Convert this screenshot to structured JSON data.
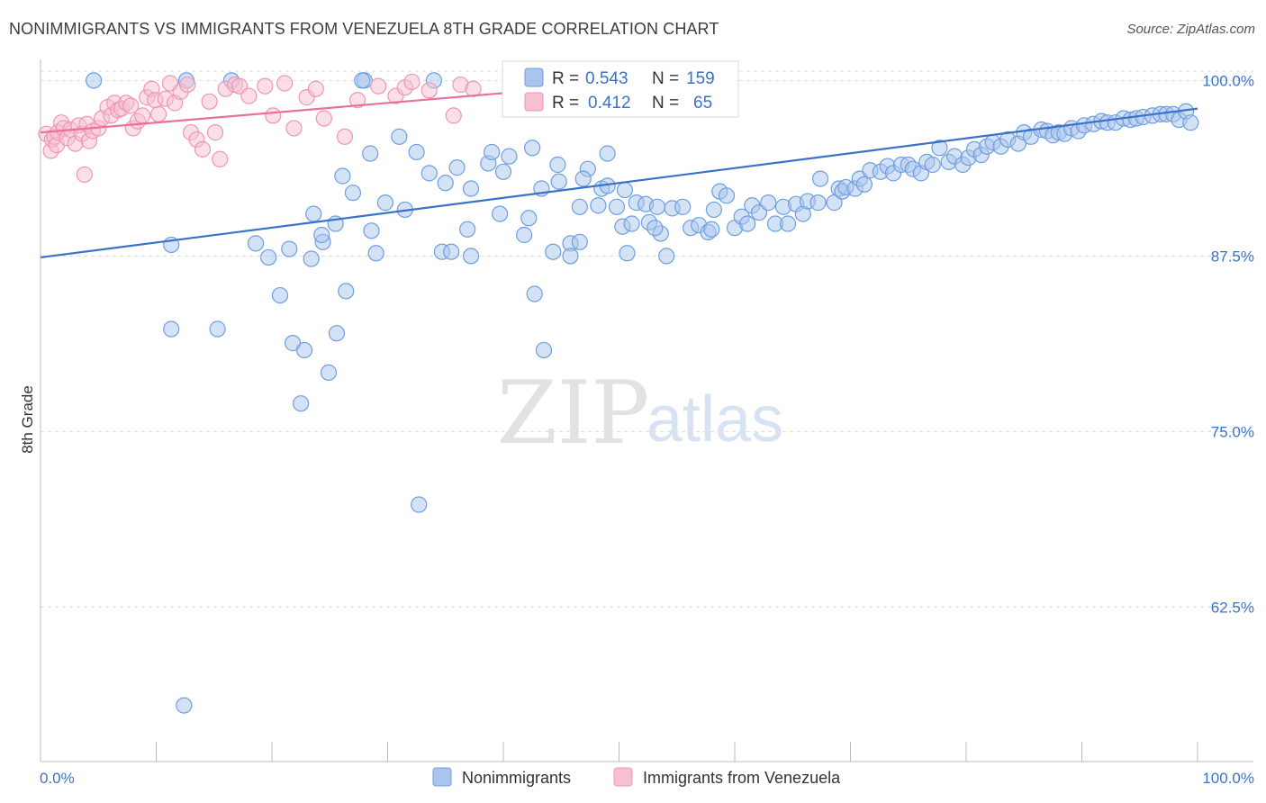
{
  "title": "NONIMMIGRANTS VS IMMIGRANTS FROM VENEZUELA 8TH GRADE CORRELATION CHART",
  "source": "Source: ZipAtlas.com",
  "colors": {
    "blue": "#3b72c9",
    "blue_fill": "#a9c5ee",
    "blue_stroke": "#6f9ee0",
    "pink": "#e8709b",
    "pink_fill": "#f7bfd2",
    "pink_stroke": "#ef96b5",
    "grid": "#dcdcdc"
  },
  "legend": {
    "r_label": "R =",
    "n_label": "N =",
    "entries": [
      {
        "name": "Nonimmigrants",
        "r": "0.543",
        "n": "159"
      },
      {
        "name": "Immigrants from Venezuela",
        "r": "0.412",
        "n": "65"
      }
    ]
  },
  "watermark": {
    "zip": "ZIP",
    "atlas": "atlas"
  },
  "chart_data": {
    "type": "scatter",
    "title": "NONIMMIGRANTS VS IMMIGRANTS FROM VENEZUELA 8TH GRADE CORRELATION CHART",
    "xlabel": "",
    "ylabel": "8th Grade",
    "xlim": [
      0,
      100
    ],
    "ylim": [
      51.5,
      101.5
    ],
    "x_tick_labels": [
      "0.0%",
      "100.0%"
    ],
    "y_ticks": [
      62.5,
      75.0,
      87.5,
      100.0
    ],
    "y_tick_labels": [
      "62.5%",
      "75.0%",
      "87.5%",
      "100.0%"
    ],
    "grid": true,
    "series": [
      {
        "name": "Nonimmigrants",
        "color": "blue",
        "r": 0.543,
        "n": 159,
        "trend": [
          [
            0,
            87.4
          ],
          [
            100,
            98.0
          ]
        ],
        "points": [
          [
            4.6,
            100.0
          ],
          [
            16.5,
            100.0
          ],
          [
            28.0,
            100.0
          ],
          [
            34.0,
            100.0
          ],
          [
            12.6,
            100.0
          ],
          [
            27.8,
            100.0
          ],
          [
            11.3,
            88.3
          ],
          [
            21.5,
            88.0
          ],
          [
            23.6,
            90.5
          ],
          [
            28.6,
            89.3
          ],
          [
            31.5,
            90.8
          ],
          [
            25.5,
            89.8
          ],
          [
            19.7,
            87.4
          ],
          [
            23.4,
            87.3
          ],
          [
            29.0,
            87.7
          ],
          [
            34.7,
            87.8
          ],
          [
            35.5,
            87.8
          ],
          [
            37.2,
            87.5
          ],
          [
            27.0,
            92.0
          ],
          [
            28.5,
            94.8
          ],
          [
            31.0,
            96.0
          ],
          [
            29.8,
            91.3
          ],
          [
            32.5,
            94.9
          ],
          [
            33.6,
            93.4
          ],
          [
            26.1,
            93.2
          ],
          [
            15.3,
            82.3
          ],
          [
            11.3,
            82.3
          ],
          [
            20.7,
            84.7
          ],
          [
            24.4,
            88.5
          ],
          [
            21.8,
            81.3
          ],
          [
            18.6,
            88.4
          ],
          [
            24.3,
            89.0
          ],
          [
            26.4,
            85.0
          ],
          [
            25.6,
            82.0
          ],
          [
            22.8,
            80.8
          ],
          [
            37.2,
            92.3
          ],
          [
            40.0,
            93.5
          ],
          [
            36.0,
            93.8
          ],
          [
            35.0,
            92.7
          ],
          [
            38.7,
            94.1
          ],
          [
            36.9,
            89.4
          ],
          [
            39.0,
            94.9
          ],
          [
            39.7,
            90.5
          ],
          [
            40.5,
            94.6
          ],
          [
            42.5,
            95.2
          ],
          [
            42.7,
            84.8
          ],
          [
            41.8,
            89.0
          ],
          [
            42.2,
            90.2
          ],
          [
            43.3,
            92.3
          ],
          [
            44.7,
            94.0
          ],
          [
            44.3,
            87.8
          ],
          [
            44.8,
            92.8
          ],
          [
            45.8,
            88.4
          ],
          [
            45.8,
            87.5
          ],
          [
            46.6,
            88.5
          ],
          [
            47.3,
            93.7
          ],
          [
            46.9,
            93.0
          ],
          [
            46.6,
            91.0
          ],
          [
            48.2,
            91.1
          ],
          [
            48.5,
            92.3
          ],
          [
            49.0,
            94.8
          ],
          [
            49.0,
            92.5
          ],
          [
            49.8,
            91.0
          ],
          [
            50.5,
            92.2
          ],
          [
            51.5,
            91.3
          ],
          [
            50.3,
            89.6
          ],
          [
            50.7,
            87.7
          ],
          [
            51.1,
            89.8
          ],
          [
            52.3,
            91.2
          ],
          [
            52.6,
            89.9
          ],
          [
            53.3,
            91.0
          ],
          [
            53.6,
            89.1
          ],
          [
            54.1,
            87.5
          ],
          [
            53.1,
            89.5
          ],
          [
            54.6,
            90.9
          ],
          [
            55.5,
            91.0
          ],
          [
            56.2,
            89.5
          ],
          [
            56.9,
            89.7
          ],
          [
            57.7,
            89.2
          ],
          [
            58.0,
            89.4
          ],
          [
            58.2,
            90.8
          ],
          [
            58.7,
            92.1
          ],
          [
            59.3,
            91.8
          ],
          [
            60.0,
            89.5
          ],
          [
            60.6,
            90.3
          ],
          [
            61.1,
            89.8
          ],
          [
            61.5,
            91.1
          ],
          [
            62.1,
            90.6
          ],
          [
            62.9,
            91.3
          ],
          [
            63.5,
            89.8
          ],
          [
            64.2,
            91.0
          ],
          [
            64.6,
            89.8
          ],
          [
            65.3,
            91.2
          ],
          [
            65.9,
            90.5
          ],
          [
            66.3,
            91.4
          ],
          [
            67.2,
            91.3
          ],
          [
            67.4,
            93.0
          ],
          [
            68.6,
            91.3
          ],
          [
            69.0,
            92.3
          ],
          [
            69.3,
            92.1
          ],
          [
            69.6,
            92.4
          ],
          [
            70.4,
            92.3
          ],
          [
            70.8,
            93.0
          ],
          [
            71.2,
            92.6
          ],
          [
            71.7,
            93.6
          ],
          [
            72.6,
            93.5
          ],
          [
            73.2,
            93.9
          ],
          [
            73.7,
            93.4
          ],
          [
            74.4,
            94.0
          ],
          [
            75.0,
            94.0
          ],
          [
            75.4,
            93.7
          ],
          [
            76.1,
            93.4
          ],
          [
            76.6,
            94.2
          ],
          [
            77.1,
            94.0
          ],
          [
            77.7,
            95.2
          ],
          [
            78.5,
            94.2
          ],
          [
            79.0,
            94.6
          ],
          [
            79.7,
            94.0
          ],
          [
            80.2,
            94.5
          ],
          [
            80.7,
            95.1
          ],
          [
            81.3,
            94.7
          ],
          [
            81.8,
            95.3
          ],
          [
            82.3,
            95.6
          ],
          [
            83.0,
            95.3
          ],
          [
            83.6,
            95.8
          ],
          [
            84.5,
            95.5
          ],
          [
            85.0,
            96.3
          ],
          [
            85.6,
            96.0
          ],
          [
            86.5,
            96.5
          ],
          [
            87.0,
            96.4
          ],
          [
            87.5,
            96.1
          ],
          [
            88.0,
            96.3
          ],
          [
            88.5,
            96.2
          ],
          [
            89.1,
            96.6
          ],
          [
            89.7,
            96.4
          ],
          [
            90.2,
            96.8
          ],
          [
            91.0,
            96.9
          ],
          [
            91.7,
            97.1
          ],
          [
            92.2,
            97.0
          ],
          [
            92.9,
            97.0
          ],
          [
            93.6,
            97.3
          ],
          [
            94.2,
            97.2
          ],
          [
            94.7,
            97.3
          ],
          [
            95.3,
            97.4
          ],
          [
            96.1,
            97.5
          ],
          [
            96.8,
            97.6
          ],
          [
            97.3,
            97.6
          ],
          [
            97.9,
            97.6
          ],
          [
            98.4,
            97.2
          ],
          [
            99.0,
            97.8
          ],
          [
            99.4,
            97.0
          ],
          [
            22.5,
            77.0
          ],
          [
            32.7,
            69.8
          ],
          [
            12.4,
            55.5
          ],
          [
            43.5,
            80.8
          ],
          [
            24.9,
            79.2
          ]
        ]
      },
      {
        "name": "Immigrants from Venezuela",
        "color": "pink",
        "r": 0.412,
        "n": 65,
        "trend": [
          [
            0,
            96.3
          ],
          [
            40,
            99.1
          ]
        ],
        "points": [
          [
            0.5,
            96.2
          ],
          [
            0.9,
            95.0
          ],
          [
            1.0,
            95.8
          ],
          [
            1.2,
            96.0
          ],
          [
            1.4,
            95.4
          ],
          [
            1.5,
            96.3
          ],
          [
            1.8,
            97.0
          ],
          [
            2.0,
            96.6
          ],
          [
            2.3,
            95.9
          ],
          [
            2.6,
            96.5
          ],
          [
            3.0,
            95.5
          ],
          [
            3.3,
            96.8
          ],
          [
            3.6,
            96.2
          ],
          [
            4.0,
            96.9
          ],
          [
            4.2,
            95.7
          ],
          [
            4.5,
            96.4
          ],
          [
            5.0,
            96.6
          ],
          [
            5.3,
            97.3
          ],
          [
            5.8,
            98.1
          ],
          [
            6.1,
            97.5
          ],
          [
            6.4,
            98.4
          ],
          [
            6.7,
            97.9
          ],
          [
            7.0,
            98.0
          ],
          [
            7.4,
            98.4
          ],
          [
            7.8,
            98.2
          ],
          [
            8.0,
            96.6
          ],
          [
            8.4,
            97.1
          ],
          [
            8.8,
            97.5
          ],
          [
            9.2,
            98.8
          ],
          [
            9.6,
            99.4
          ],
          [
            9.9,
            98.6
          ],
          [
            10.2,
            97.6
          ],
          [
            10.8,
            98.7
          ],
          [
            11.2,
            99.8
          ],
          [
            11.6,
            98.4
          ],
          [
            12.1,
            99.2
          ],
          [
            12.7,
            99.7
          ],
          [
            13.0,
            96.3
          ],
          [
            13.5,
            95.8
          ],
          [
            14.0,
            95.1
          ],
          [
            14.6,
            98.5
          ],
          [
            15.1,
            96.3
          ],
          [
            15.5,
            94.4
          ],
          [
            16.0,
            99.4
          ],
          [
            16.8,
            99.7
          ],
          [
            17.2,
            99.6
          ],
          [
            18.0,
            98.9
          ],
          [
            19.4,
            99.6
          ],
          [
            20.1,
            97.5
          ],
          [
            21.1,
            99.8
          ],
          [
            21.9,
            96.6
          ],
          [
            23.0,
            98.8
          ],
          [
            23.8,
            99.4
          ],
          [
            24.5,
            97.3
          ],
          [
            26.3,
            96.0
          ],
          [
            27.4,
            98.6
          ],
          [
            29.2,
            99.6
          ],
          [
            30.7,
            98.9
          ],
          [
            31.5,
            99.5
          ],
          [
            32.1,
            99.9
          ],
          [
            33.6,
            99.3
          ],
          [
            35.7,
            97.5
          ],
          [
            36.3,
            99.7
          ],
          [
            37.4,
            99.4
          ],
          [
            3.8,
            93.3
          ]
        ]
      }
    ]
  }
}
